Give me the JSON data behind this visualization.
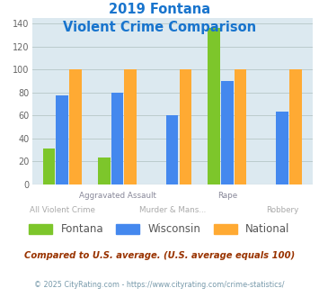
{
  "title_line1": "2019 Fontana",
  "title_line2": "Violent Crime Comparison",
  "title_color": "#1874cd",
  "series": {
    "Fontana": [
      31,
      23,
      0,
      136,
      0
    ],
    "Wisconsin": [
      77,
      80,
      60,
      90,
      63
    ],
    "National": [
      100,
      100,
      100,
      100,
      100
    ]
  },
  "colors": {
    "Fontana": "#7dc62b",
    "Wisconsin": "#4488ee",
    "National": "#ffaa33"
  },
  "ylim": [
    0,
    145
  ],
  "yticks": [
    0,
    20,
    40,
    60,
    80,
    100,
    120,
    140
  ],
  "grid_color": "#bbcccc",
  "bg_color": "#dce9f0",
  "x_top_labels": [
    "",
    "Aggravated Assault",
    "",
    "Rape",
    ""
  ],
  "x_bot_labels": [
    "All Violent Crime",
    "",
    "Murder & Mans...",
    "",
    "Robbery"
  ],
  "top_label_color": "#888899",
  "bot_label_color": "#aaaaaa",
  "note_text": "Compared to U.S. average. (U.S. average equals 100)",
  "note_color": "#993300",
  "footer_text": "© 2025 CityRating.com - https://www.cityrating.com/crime-statistics/",
  "footer_color": "#7799aa"
}
